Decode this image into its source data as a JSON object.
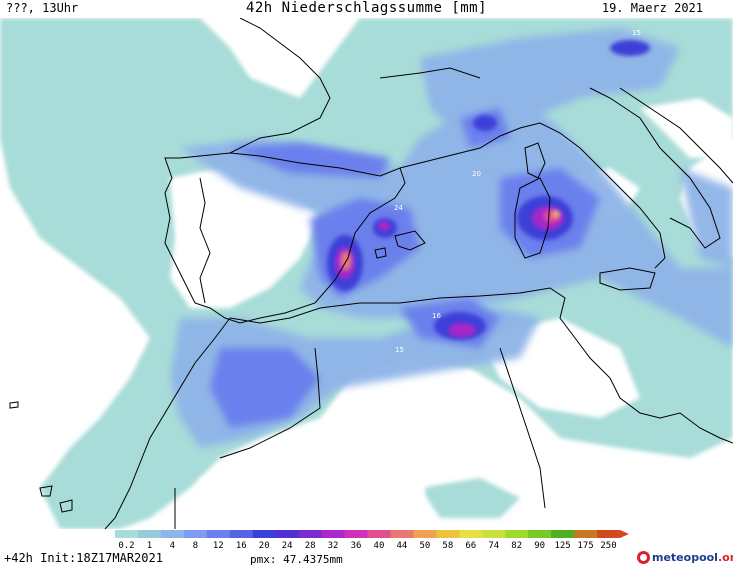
{
  "header": {
    "left": "???, 13Uhr",
    "title": "42h Niederschlagssumme [mm]",
    "date": "19. Maerz 2021"
  },
  "footer": {
    "forecast": "+42h Init:18Z17MAR2021",
    "pmax": "pmx: 47.4375mm"
  },
  "logo": {
    "name": "meteopool",
    "suffix": ".org"
  },
  "legend": {
    "levels": [
      "0.2",
      "1",
      "4",
      "8",
      "12",
      "16",
      "20",
      "24",
      "28",
      "32",
      "36",
      "40",
      "44",
      "50",
      "58",
      "66",
      "74",
      "82",
      "90",
      "125",
      "175",
      "250"
    ],
    "colors": [
      "#a8dcd8",
      "#96ccd8",
      "#8fb4e8",
      "#7f9cf0",
      "#6a80ec",
      "#5664e4",
      "#3c40d8",
      "#5030d0",
      "#7a2ccc",
      "#a828c8",
      "#d030b8",
      "#e05090",
      "#e87870",
      "#f0a050",
      "#f0c040",
      "#e8e040",
      "#c8e040",
      "#a0d830",
      "#78c828",
      "#50b020",
      "#c87820",
      "#d04a20"
    ]
  },
  "map_labels": [
    {
      "text": "15"
    },
    {
      "text": "24"
    },
    {
      "text": "20"
    },
    {
      "text": "16"
    },
    {
      "text": "15"
    }
  ],
  "colors": {
    "sea_base": "#ffffff",
    "light_precip": "#a8dcd8",
    "coast": "#000000"
  }
}
